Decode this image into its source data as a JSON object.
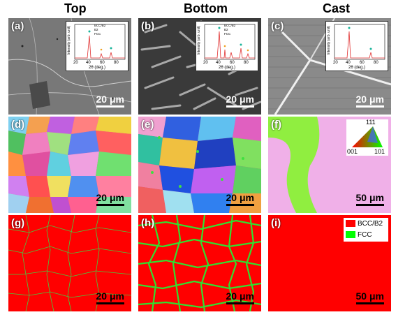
{
  "columns": [
    "Top",
    "Bottom",
    "Cast"
  ],
  "panels": {
    "a": {
      "label": "(a)",
      "scale": "20 μm"
    },
    "b": {
      "label": "(b)",
      "scale": "20 μm"
    },
    "c": {
      "label": "(c)",
      "scale": "20 μm"
    },
    "d": {
      "label": "(d)",
      "scale": "20 μm"
    },
    "e": {
      "label": "(e)",
      "scale": "20 μm"
    },
    "f": {
      "label": "(f)",
      "scale": "50 μm"
    },
    "g": {
      "label": "(g)",
      "scale": "20 μm"
    },
    "h": {
      "label": "(h)",
      "scale": "20 μm"
    },
    "i": {
      "label": "(i)",
      "scale": "50 μm"
    }
  },
  "xrd_inset": {
    "ylabel": "Intensity (arb. unit)",
    "xlabel": "2θ (deg.)",
    "ticks": [
      "20",
      "40",
      "60",
      "80"
    ],
    "legend": [
      "BCC/B2",
      "B2",
      "FCC"
    ]
  },
  "ipf_key": {
    "top": "111",
    "left": "001",
    "right": "101"
  },
  "phase_legend": [
    {
      "label": "BCC/B2",
      "color": "#ff0000"
    },
    {
      "label": "FCC",
      "color": "#00ff00"
    }
  ],
  "colors": {
    "bcc": "#ff0000",
    "fcc": "#00ff00",
    "sem_bg": "#6b6b6b"
  }
}
